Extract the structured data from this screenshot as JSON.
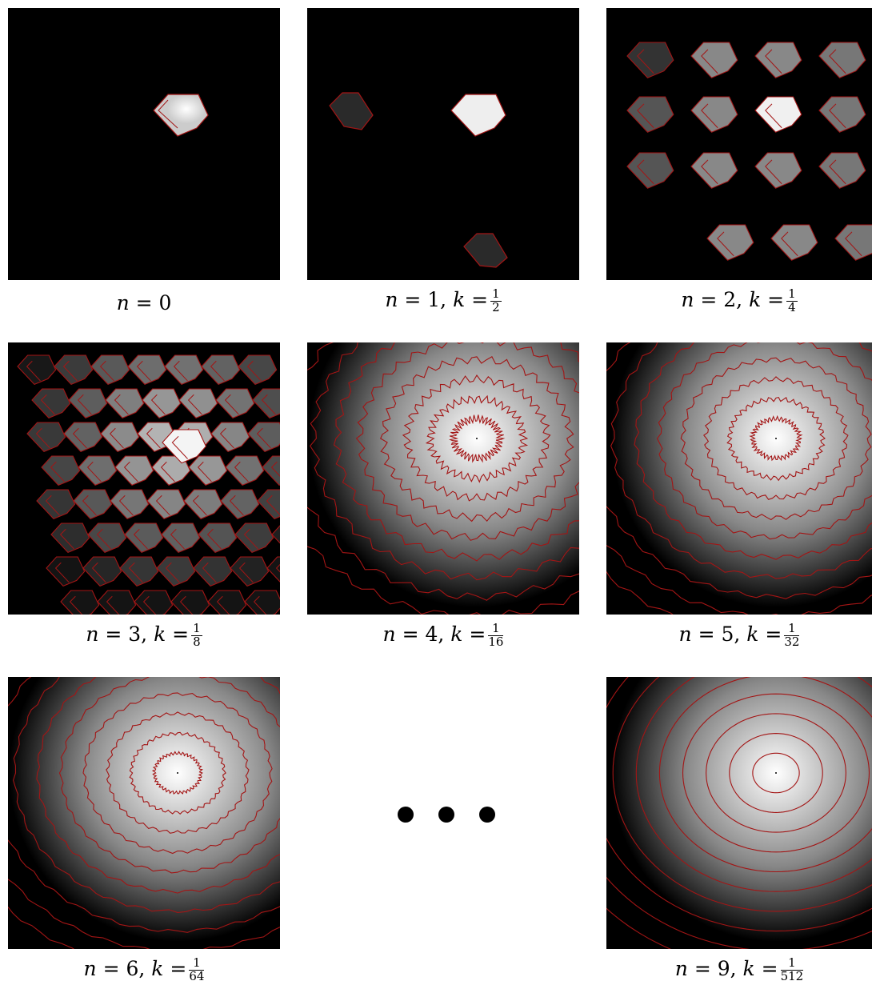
{
  "figure": {
    "panels": [
      {
        "id": "p0",
        "n": "0",
        "k_num": "",
        "k_den": "",
        "caption_n": "n = 0",
        "levels": 1,
        "stage": 0
      },
      {
        "id": "p1",
        "n": "1",
        "k_num": "1",
        "k_den": "2",
        "stage": 1
      },
      {
        "id": "p2",
        "n": "2",
        "k_num": "1",
        "k_den": "4",
        "stage": 2
      },
      {
        "id": "p3",
        "n": "3",
        "k_num": "1",
        "k_den": "8",
        "stage": 3
      },
      {
        "id": "p4",
        "n": "4",
        "k_num": "1",
        "k_den": "16",
        "stage": 4
      },
      {
        "id": "p5",
        "n": "5",
        "k_num": "1",
        "k_den": "32",
        "stage": 5
      },
      {
        "id": "p6",
        "n": "6",
        "k_num": "1",
        "k_den": "64",
        "stage": 6
      },
      {
        "id": "p9",
        "n": "9",
        "k_num": "1",
        "k_den": "512",
        "stage": 9
      }
    ],
    "colors": {
      "contour": "#a31515",
      "background": "#000000",
      "page": "#ffffff"
    }
  }
}
